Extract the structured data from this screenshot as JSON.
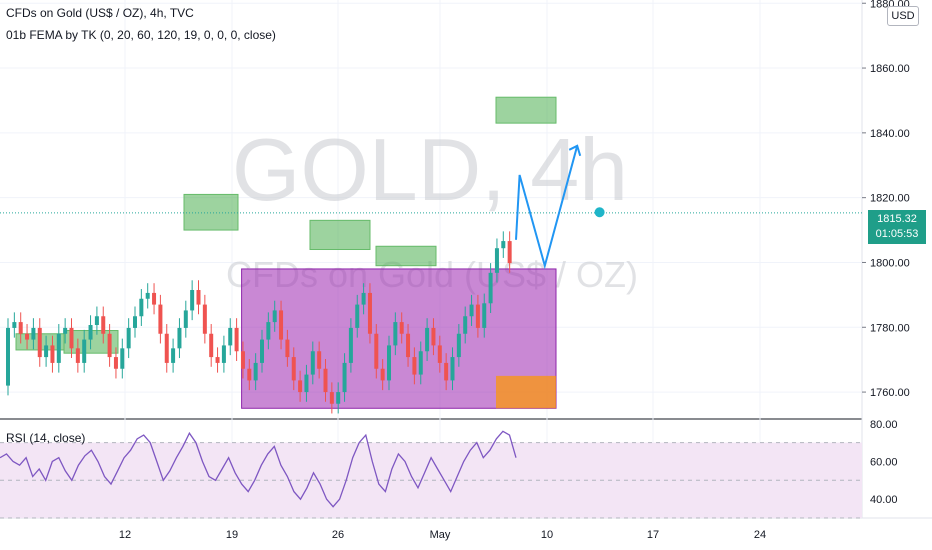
{
  "header": {
    "title": "CFDs on Gold (US$ / OZ), 4h, TVC",
    "indicator": "01b FEMA by TK (0, 20, 60, 120, 19, 0, 0, 0, close)"
  },
  "watermark": {
    "symbol": "GOLD, 4h",
    "description": "CFDs on Gold (US$ / OZ)"
  },
  "currency_button": "USD",
  "last_price": {
    "value": "1815.32",
    "countdown": "01:05:53"
  },
  "rsi_label": "RSI (14, close)",
  "colors": {
    "up": "#26a69a",
    "down": "#ef5350",
    "range_box": "#9c27b0",
    "projection": "#2196f3",
    "supply_zone": "#4caf50",
    "demand_zone": "#ff9800",
    "rsi_line": "#7e57c2",
    "rsi_band": "#f3e5f5"
  },
  "chart_data": [
    {
      "type": "candlestick",
      "title": "CFDs on Gold (US$ / OZ), 4h, TVC",
      "x_ticks": [
        "12",
        "19",
        "26",
        "May",
        "10",
        "17",
        "24"
      ],
      "y_ticks": [
        1760.0,
        1780.0,
        1800.0,
        1820.0,
        1840.0,
        1860.0,
        1880.0
      ],
      "ylim": [
        1752,
        1881
      ],
      "last_price": 1815.32,
      "marked_point": {
        "day": 12.3,
        "price": 1815.5
      },
      "projection_path": [
        {
          "day": 7.5,
          "price": 1807
        },
        {
          "day": 7.8,
          "price": 1827
        },
        {
          "day": 9.9,
          "price": 1799
        },
        {
          "day": 12.6,
          "price": 1836
        }
      ],
      "supply_zones": [
        {
          "from_day": 0.0,
          "to_day": 4.0,
          "low": 1773,
          "high": 1778
        },
        {
          "from_day": 4.0,
          "to_day": 8.5,
          "low": 1772,
          "high": 1779
        },
        {
          "from_day": 14.0,
          "to_day": 18.5,
          "low": 1810,
          "high": 1821
        },
        {
          "from_day": 24.5,
          "to_day": 29.5,
          "low": 1804,
          "high": 1813
        },
        {
          "from_day": 30.0,
          "to_day": 35.0,
          "low": 1799,
          "high": 1805
        },
        {
          "from_day": 40.0,
          "to_day": 45.0,
          "low": 1843,
          "high": 1851
        }
      ],
      "range_box": {
        "from_day": 18.8,
        "to_day": 45.0,
        "low": 1755,
        "high": 1798
      },
      "demand_zone": {
        "from_day": 40.0,
        "to_day": 45.0,
        "low": 1755,
        "high": 1765
      }
    },
    {
      "type": "line",
      "title": "RSI (14, close)",
      "y_ticks": [
        40.0,
        60.0,
        80.0
      ],
      "ylim": [
        30,
        82
      ],
      "band": [
        30,
        70
      ],
      "series": [
        {
          "values": [
            62,
            64,
            60,
            58,
            62,
            52,
            56,
            50,
            60,
            62,
            55,
            50,
            58,
            63,
            66,
            60,
            52,
            48,
            55,
            62,
            66,
            72,
            74,
            70,
            60,
            50,
            55,
            62,
            68,
            75,
            70,
            60,
            52,
            50,
            56,
            62,
            54,
            48,
            44,
            50,
            58,
            64,
            68,
            58,
            52,
            44,
            40,
            46,
            54,
            48,
            40,
            36,
            40,
            50,
            62,
            70,
            74,
            60,
            48,
            44,
            56,
            64,
            60,
            52,
            46,
            54,
            62,
            56,
            50,
            44,
            52,
            60,
            66,
            70,
            62,
            66,
            72,
            76,
            74,
            62
          ]
        }
      ]
    }
  ]
}
